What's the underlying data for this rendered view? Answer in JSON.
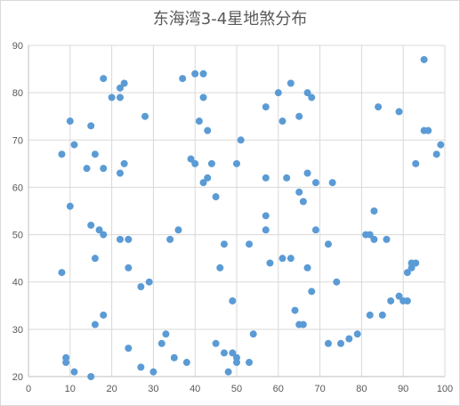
{
  "chart_data": {
    "type": "scatter",
    "title": "东海湾3-4星地煞分布",
    "xlabel": "",
    "ylabel": "",
    "xlim": [
      0,
      100
    ],
    "ylim": [
      20,
      90
    ],
    "xticks": [
      0,
      10,
      20,
      30,
      40,
      50,
      60,
      70,
      80,
      90,
      100
    ],
    "yticks": [
      20,
      30,
      40,
      50,
      60,
      70,
      80,
      90
    ],
    "grid": true,
    "legend": "none",
    "marker_color": "#5b9bd5",
    "gridline_color": "#d9d9d9",
    "axis_color": "#bfbfbf",
    "series": [
      {
        "points": [
          [
            8,
            67
          ],
          [
            8,
            42
          ],
          [
            9,
            24
          ],
          [
            9,
            23
          ],
          [
            10,
            74
          ],
          [
            10,
            56
          ],
          [
            11,
            69
          ],
          [
            11,
            21
          ],
          [
            14,
            64
          ],
          [
            15,
            73
          ],
          [
            15,
            52
          ],
          [
            15,
            20
          ],
          [
            16,
            67
          ],
          [
            16,
            45
          ],
          [
            16,
            31
          ],
          [
            17,
            51
          ],
          [
            18,
            83
          ],
          [
            18,
            64
          ],
          [
            18,
            50
          ],
          [
            18,
            33
          ],
          [
            20,
            79
          ],
          [
            22,
            81
          ],
          [
            22,
            79
          ],
          [
            22,
            63
          ],
          [
            22,
            49
          ],
          [
            23,
            82
          ],
          [
            23,
            65
          ],
          [
            24,
            49
          ],
          [
            24,
            43
          ],
          [
            24,
            26
          ],
          [
            27,
            39
          ],
          [
            27,
            22
          ],
          [
            28,
            75
          ],
          [
            29,
            40
          ],
          [
            30,
            21
          ],
          [
            32,
            27
          ],
          [
            33,
            29
          ],
          [
            34,
            49
          ],
          [
            35,
            24
          ],
          [
            36,
            51
          ],
          [
            37,
            83
          ],
          [
            38,
            23
          ],
          [
            39,
            66
          ],
          [
            40,
            84
          ],
          [
            40,
            65
          ],
          [
            41,
            74
          ],
          [
            42,
            84
          ],
          [
            42,
            79
          ],
          [
            42,
            61
          ],
          [
            43,
            72
          ],
          [
            43,
            62
          ],
          [
            44,
            65
          ],
          [
            45,
            58
          ],
          [
            45,
            27
          ],
          [
            46,
            43
          ],
          [
            47,
            48
          ],
          [
            47,
            25
          ],
          [
            48,
            21
          ],
          [
            49,
            36
          ],
          [
            49,
            25
          ],
          [
            50,
            65
          ],
          [
            50,
            24
          ],
          [
            50,
            23
          ],
          [
            51,
            70
          ],
          [
            53,
            48
          ],
          [
            53,
            23
          ],
          [
            54,
            29
          ],
          [
            57,
            77
          ],
          [
            57,
            62
          ],
          [
            57,
            54
          ],
          [
            57,
            51
          ],
          [
            58,
            44
          ],
          [
            60,
            80
          ],
          [
            61,
            74
          ],
          [
            61,
            45
          ],
          [
            62,
            62
          ],
          [
            63,
            82
          ],
          [
            63,
            45
          ],
          [
            64,
            34
          ],
          [
            65,
            75
          ],
          [
            65,
            59
          ],
          [
            65,
            31
          ],
          [
            66,
            57
          ],
          [
            66,
            31
          ],
          [
            67,
            80
          ],
          [
            67,
            63
          ],
          [
            67,
            43
          ],
          [
            68,
            79
          ],
          [
            68,
            38
          ],
          [
            69,
            61
          ],
          [
            69,
            51
          ],
          [
            72,
            48
          ],
          [
            72,
            27
          ],
          [
            73,
            61
          ],
          [
            74,
            40
          ],
          [
            75,
            27
          ],
          [
            77,
            28
          ],
          [
            79,
            29
          ],
          [
            81,
            50
          ],
          [
            82,
            50
          ],
          [
            82,
            33
          ],
          [
            83,
            55
          ],
          [
            83,
            49
          ],
          [
            84,
            77
          ],
          [
            85,
            33
          ],
          [
            86,
            49
          ],
          [
            87,
            36
          ],
          [
            89,
            76
          ],
          [
            89,
            37
          ],
          [
            90,
            36
          ],
          [
            91,
            42
          ],
          [
            91,
            36
          ],
          [
            92,
            44
          ],
          [
            92,
            43
          ],
          [
            93,
            65
          ],
          [
            93,
            44
          ],
          [
            95,
            87
          ],
          [
            95,
            72
          ],
          [
            96,
            72
          ],
          [
            98,
            67
          ],
          [
            99,
            69
          ]
        ]
      }
    ]
  }
}
